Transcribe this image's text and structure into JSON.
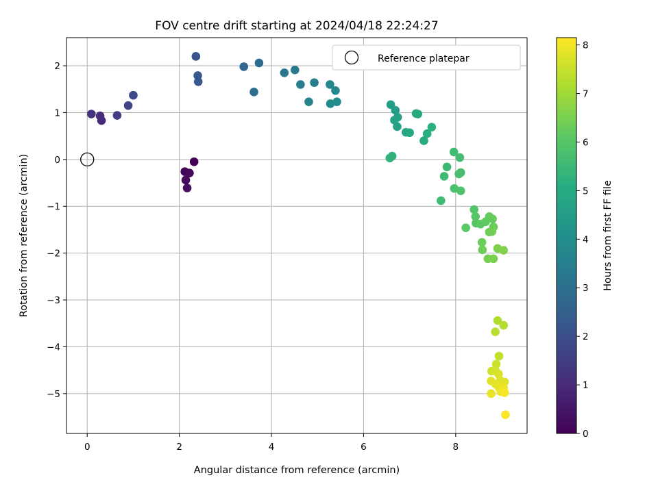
{
  "chart_data": {
    "type": "scatter",
    "title": "FOV centre drift starting at 2024/04/18 22:24:27",
    "xlabel": "Angular distance from reference (arcmin)",
    "ylabel": "Rotation from reference (arcmin)",
    "xlim": [
      -0.45,
      9.55
    ],
    "ylim": [
      -5.85,
      2.6
    ],
    "xticks": [
      0,
      2,
      4,
      6,
      8
    ],
    "yticks": [
      2,
      1,
      0,
      -1,
      -2,
      -3,
      -4,
      -5
    ],
    "grid": true,
    "legend": {
      "position": "top-right",
      "entries": [
        "Reference platepar"
      ]
    },
    "reference_point": {
      "x": 0,
      "y": 0
    },
    "colorbar": {
      "label": "Hours from first FF file",
      "min": 0,
      "max": 8.15,
      "ticks": [
        0,
        1,
        2,
        3,
        4,
        5,
        6,
        7,
        8
      ],
      "colormap": "viridis"
    },
    "points": [
      {
        "x": 2.32,
        "y": -0.05,
        "h": 0.05
      },
      {
        "x": 2.12,
        "y": -0.26,
        "h": 0.15
      },
      {
        "x": 2.22,
        "y": -0.29,
        "h": 0.2
      },
      {
        "x": 2.14,
        "y": -0.44,
        "h": 0.25
      },
      {
        "x": 2.17,
        "y": -0.61,
        "h": 0.3
      },
      {
        "x": 0.31,
        "y": 0.83,
        "h": 1.0
      },
      {
        "x": 0.28,
        "y": 0.93,
        "h": 1.05
      },
      {
        "x": 0.09,
        "y": 0.97,
        "h": 1.2
      },
      {
        "x": 0.65,
        "y": 0.94,
        "h": 1.5
      },
      {
        "x": 0.89,
        "y": 1.15,
        "h": 1.7
      },
      {
        "x": 1.0,
        "y": 1.37,
        "h": 1.85
      },
      {
        "x": 2.36,
        "y": 2.2,
        "h": 2.15
      },
      {
        "x": 2.4,
        "y": 1.79,
        "h": 2.25
      },
      {
        "x": 2.41,
        "y": 1.66,
        "h": 2.3
      },
      {
        "x": 3.4,
        "y": 1.98,
        "h": 2.8
      },
      {
        "x": 3.73,
        "y": 2.06,
        "h": 2.9
      },
      {
        "x": 3.62,
        "y": 1.44,
        "h": 3.0
      },
      {
        "x": 4.28,
        "y": 1.85,
        "h": 3.2
      },
      {
        "x": 4.51,
        "y": 1.91,
        "h": 3.3
      },
      {
        "x": 4.63,
        "y": 1.6,
        "h": 3.4
      },
      {
        "x": 4.93,
        "y": 1.64,
        "h": 3.5
      },
      {
        "x": 4.81,
        "y": 1.23,
        "h": 3.6
      },
      {
        "x": 5.27,
        "y": 1.6,
        "h": 3.7
      },
      {
        "x": 5.39,
        "y": 1.47,
        "h": 3.8
      },
      {
        "x": 5.28,
        "y": 1.19,
        "h": 3.85
      },
      {
        "x": 5.42,
        "y": 1.23,
        "h": 3.9
      },
      {
        "x": 6.59,
        "y": 1.17,
        "h": 4.5
      },
      {
        "x": 6.69,
        "y": 1.05,
        "h": 4.55
      },
      {
        "x": 6.74,
        "y": 0.9,
        "h": 4.6
      },
      {
        "x": 6.67,
        "y": 0.84,
        "h": 4.65
      },
      {
        "x": 6.73,
        "y": 0.7,
        "h": 4.7
      },
      {
        "x": 6.92,
        "y": 0.58,
        "h": 4.8
      },
      {
        "x": 7.0,
        "y": 0.57,
        "h": 4.9
      },
      {
        "x": 7.14,
        "y": 0.98,
        "h": 4.95
      },
      {
        "x": 7.18,
        "y": 0.97,
        "h": 5.0
      },
      {
        "x": 7.38,
        "y": 0.55,
        "h": 5.1
      },
      {
        "x": 7.48,
        "y": 0.69,
        "h": 5.2
      },
      {
        "x": 7.31,
        "y": 0.4,
        "h": 5.05
      },
      {
        "x": 6.62,
        "y": 0.07,
        "h": 5.25
      },
      {
        "x": 6.57,
        "y": 0.03,
        "h": 5.3
      },
      {
        "x": 7.81,
        "y": -0.16,
        "h": 5.5
      },
      {
        "x": 7.75,
        "y": -0.36,
        "h": 5.55
      },
      {
        "x": 7.96,
        "y": 0.16,
        "h": 5.6
      },
      {
        "x": 8.09,
        "y": 0.04,
        "h": 5.65
      },
      {
        "x": 8.11,
        "y": -0.28,
        "h": 5.7
      },
      {
        "x": 8.07,
        "y": -0.31,
        "h": 5.75
      },
      {
        "x": 7.97,
        "y": -0.62,
        "h": 5.8
      },
      {
        "x": 8.11,
        "y": -0.67,
        "h": 5.85
      },
      {
        "x": 7.68,
        "y": -0.88,
        "h": 5.6
      },
      {
        "x": 8.4,
        "y": -1.07,
        "h": 5.95
      },
      {
        "x": 8.43,
        "y": -1.22,
        "h": 6.0
      },
      {
        "x": 8.44,
        "y": -1.36,
        "h": 6.05
      },
      {
        "x": 8.54,
        "y": -1.38,
        "h": 6.1
      },
      {
        "x": 8.22,
        "y": -1.46,
        "h": 6.1
      },
      {
        "x": 8.65,
        "y": -1.33,
        "h": 6.15
      },
      {
        "x": 8.73,
        "y": -1.22,
        "h": 6.2
      },
      {
        "x": 8.8,
        "y": -1.27,
        "h": 6.25
      },
      {
        "x": 8.82,
        "y": -1.44,
        "h": 6.3
      },
      {
        "x": 8.73,
        "y": -1.55,
        "h": 6.35
      },
      {
        "x": 8.79,
        "y": -1.54,
        "h": 6.4
      },
      {
        "x": 8.57,
        "y": -1.77,
        "h": 6.3
      },
      {
        "x": 8.58,
        "y": -1.93,
        "h": 6.35
      },
      {
        "x": 8.7,
        "y": -2.12,
        "h": 6.45
      },
      {
        "x": 8.82,
        "y": -2.12,
        "h": 6.5
      },
      {
        "x": 8.91,
        "y": -1.9,
        "h": 6.55
      },
      {
        "x": 9.04,
        "y": -1.94,
        "h": 6.6
      },
      {
        "x": 8.91,
        "y": -3.44,
        "h": 7.2
      },
      {
        "x": 9.04,
        "y": -3.54,
        "h": 7.25
      },
      {
        "x": 8.86,
        "y": -3.68,
        "h": 7.3
      },
      {
        "x": 8.94,
        "y": -4.2,
        "h": 7.45
      },
      {
        "x": 8.88,
        "y": -4.37,
        "h": 7.55
      },
      {
        "x": 8.78,
        "y": -4.52,
        "h": 7.6
      },
      {
        "x": 8.87,
        "y": -4.52,
        "h": 7.65
      },
      {
        "x": 8.93,
        "y": -4.58,
        "h": 7.7
      },
      {
        "x": 8.97,
        "y": -4.72,
        "h": 7.75
      },
      {
        "x": 9.06,
        "y": -4.75,
        "h": 7.8
      },
      {
        "x": 8.77,
        "y": -4.73,
        "h": 7.8
      },
      {
        "x": 8.87,
        "y": -4.8,
        "h": 7.85
      },
      {
        "x": 8.94,
        "y": -4.87,
        "h": 7.9
      },
      {
        "x": 9.04,
        "y": -4.88,
        "h": 7.95
      },
      {
        "x": 8.98,
        "y": -4.96,
        "h": 8.0
      },
      {
        "x": 9.06,
        "y": -4.98,
        "h": 8.05
      },
      {
        "x": 8.77,
        "y": -5.0,
        "h": 7.9
      },
      {
        "x": 9.08,
        "y": -5.45,
        "h": 8.1
      }
    ]
  }
}
